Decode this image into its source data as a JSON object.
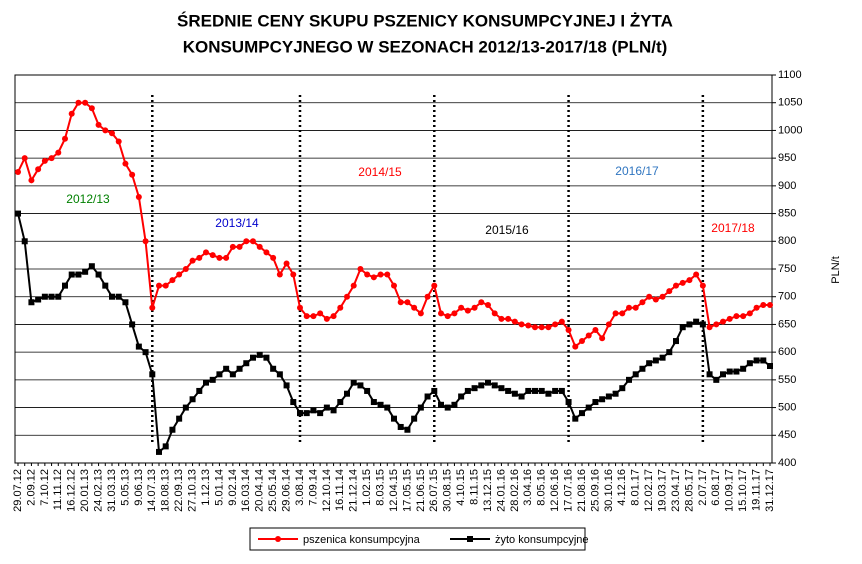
{
  "chart_data": {
    "type": "line",
    "title": [
      "ŚREDNIE CENY SKUPU PSZENICY KONSUMPCYJNEJ I ŻYTA",
      "KONSUMPCYJNEGO W SEZONACH 2012/13-2017/18 (PLN/t)"
    ],
    "y_label": "PLN/t",
    "categories": [
      "29.07.12",
      null,
      "2.09.12",
      null,
      "7.10.12",
      null,
      "11.11.12",
      null,
      "16.12.12",
      null,
      "20.01.13",
      null,
      "24.02.13",
      null,
      "31.03.13",
      null,
      "5.05.13",
      null,
      "9.06.13",
      null,
      "14.07.13",
      null,
      "18.08.13",
      null,
      "22.09.13",
      null,
      "27.10.13",
      null,
      "1.12.13",
      null,
      "5.01.14",
      null,
      "9.02.14",
      null,
      "16.03.14",
      null,
      "20.04.14",
      null,
      "25.05.14",
      null,
      "29.06.14",
      null,
      "3.08.14",
      null,
      "7.09.14",
      null,
      "12.10.14",
      null,
      "16.11.14",
      null,
      "21.12.14",
      null,
      "1.02.15",
      null,
      "8.03.15",
      null,
      "12.04.15",
      null,
      "17.05.15",
      null,
      "21.06.15",
      null,
      "26.07.15",
      null,
      "30.08.15",
      null,
      "4.10.15",
      null,
      "8.11.15",
      null,
      "13.12.15",
      null,
      "24.01.16",
      null,
      "28.02.16",
      null,
      "3.04.16",
      null,
      "8.05.16",
      null,
      "12.06.16",
      null,
      "17.07.16",
      null,
      "21.08.16",
      null,
      "25.09.16",
      null,
      "30.10.16",
      null,
      "4.12.16",
      null,
      "8.01.17",
      null,
      "12.02.17",
      null,
      "19.03.17",
      null,
      "23.04.17",
      null,
      "28.05.17",
      null,
      "2.07.17",
      null,
      "6.08.17",
      null,
      "10.09.17",
      null,
      "15.10.17",
      null,
      "19.11.17",
      null,
      "31.12.17"
    ],
    "series": [
      {
        "name": "pszenica konsumpcyjna",
        "color": "#ff0000",
        "marker": "circle",
        "values": [
          925,
          950,
          910,
          930,
          945,
          950,
          960,
          985,
          1030,
          1050,
          1050,
          1040,
          1010,
          1000,
          995,
          980,
          940,
          920,
          880,
          800,
          680,
          720,
          720,
          730,
          740,
          750,
          765,
          770,
          780,
          775,
          770,
          770,
          790,
          790,
          800,
          800,
          790,
          780,
          770,
          740,
          760,
          740,
          680,
          665,
          665,
          670,
          660,
          665,
          680,
          700,
          720,
          750,
          740,
          735,
          740,
          740,
          720,
          690,
          690,
          680,
          670,
          700,
          720,
          670,
          665,
          670,
          680,
          675,
          680,
          690,
          685,
          670,
          660,
          660,
          655,
          650,
          648,
          645,
          645,
          645,
          650,
          655,
          640,
          610,
          620,
          630,
          640,
          625,
          650,
          670,
          670,
          680,
          680,
          690,
          700,
          695,
          700,
          710,
          720,
          725,
          730,
          740,
          720,
          645,
          650,
          655,
          660,
          665,
          665,
          670,
          680,
          685,
          685
        ]
      },
      {
        "name": "żyto konsumpcyjne",
        "color": "#000000",
        "marker": "square",
        "values": [
          850,
          800,
          690,
          695,
          700,
          700,
          700,
          720,
          740,
          740,
          745,
          755,
          740,
          720,
          700,
          700,
          690,
          650,
          610,
          600,
          560,
          420,
          430,
          460,
          480,
          500,
          515,
          530,
          545,
          550,
          560,
          570,
          560,
          570,
          580,
          590,
          595,
          590,
          570,
          560,
          540,
          510,
          490,
          490,
          495,
          490,
          500,
          495,
          510,
          525,
          545,
          540,
          530,
          510,
          505,
          500,
          480,
          465,
          460,
          480,
          500,
          520,
          530,
          505,
          500,
          505,
          520,
          530,
          535,
          540,
          545,
          540,
          535,
          530,
          525,
          520,
          530,
          530,
          530,
          525,
          530,
          530,
          510,
          480,
          490,
          500,
          510,
          515,
          520,
          525,
          535,
          550,
          560,
          570,
          580,
          585,
          590,
          600,
          620,
          645,
          650,
          655,
          650,
          560,
          550,
          560,
          565,
          565,
          570,
          580,
          585,
          585,
          575
        ]
      }
    ],
    "ylim": [
      400,
      1100
    ],
    "yticks": [
      400,
      450,
      500,
      550,
      600,
      650,
      700,
      750,
      800,
      850,
      900,
      950,
      1000,
      1050,
      1100
    ],
    "y_axis_side": "right",
    "grid": true,
    "dividers": [
      "14.07.13",
      "3.08.14",
      "26.07.15",
      "17.07.16",
      "2.07.17"
    ],
    "annotations": [
      {
        "text": "2012/13",
        "color": "#008000"
      },
      {
        "text": "2013/14",
        "color": "#0000cc"
      },
      {
        "text": "2014/15",
        "color": "#ff0000"
      },
      {
        "text": "2015/16",
        "color": "#000000"
      },
      {
        "text": "2016/17",
        "color": "#2f75c0"
      },
      {
        "text": "2017/18",
        "color": "#ff0000"
      }
    ],
    "legend": "bottom"
  }
}
